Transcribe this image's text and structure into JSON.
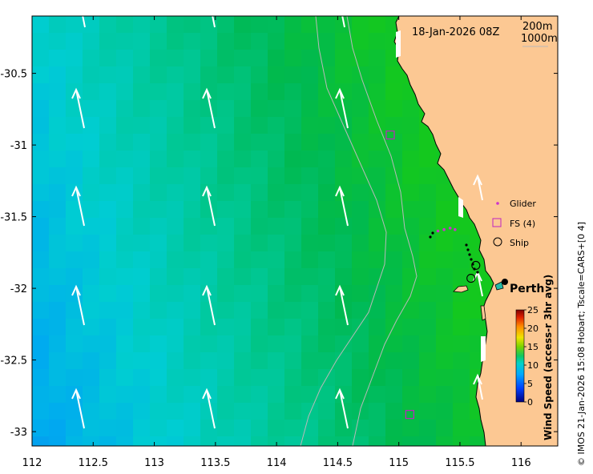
{
  "map": {
    "timestamp": "18-Jan-2026 08Z",
    "contours": [
      "200m",
      "1000m"
    ],
    "city_label": "Perth",
    "credit": "© IMOS 21-Jan-2026 15:08 Hobart; Tscale=CARS+[0 4]",
    "x_ticks": [
      {
        "value": 112,
        "label": "112"
      },
      {
        "value": 112.5,
        "label": "112.5"
      },
      {
        "value": 113,
        "label": "113"
      },
      {
        "value": 113.5,
        "label": "113.5"
      },
      {
        "value": 114,
        "label": "114"
      },
      {
        "value": 114.5,
        "label": "114.5"
      },
      {
        "value": 115,
        "label": "115"
      },
      {
        "value": 115.5,
        "label": "115.5"
      },
      {
        "value": 116,
        "label": "116"
      }
    ],
    "y_ticks": [
      {
        "value": -30.5,
        "label": "-30.5"
      },
      {
        "value": -31,
        "label": "-31"
      },
      {
        "value": -31.5,
        "label": "-31.5"
      },
      {
        "value": -32,
        "label": "-32"
      },
      {
        "value": -32.5,
        "label": "-32.5"
      },
      {
        "value": -33,
        "label": "-33"
      }
    ],
    "x_range": [
      112,
      116.3
    ],
    "y_range": [
      -33.1,
      -30.1
    ],
    "legend": {
      "glider": "Glider",
      "fs": "FS (4)",
      "ship": "Ship"
    },
    "colorbar": {
      "title": "Wind Speed (access-r 3hr avg)",
      "ticks": [
        {
          "value": 0,
          "label": "0"
        },
        {
          "value": 5,
          "label": "5"
        },
        {
          "value": 10,
          "label": "10"
        },
        {
          "value": 15,
          "label": "15"
        },
        {
          "value": 20,
          "label": "20"
        },
        {
          "value": 25,
          "label": "25"
        }
      ],
      "range": [
        0,
        25
      ]
    },
    "colors": {
      "land": "#fcc893",
      "glider": "#cc33cc",
      "fs": "#c023c0",
      "arrow": "#ffffff",
      "contour": "#b8b8b8"
    },
    "fs_stations": [
      {
        "lon": 114.93,
        "lat": -30.93
      },
      {
        "lon": 115.09,
        "lat": -32.88
      }
    ],
    "ship_positions": [
      {
        "lon": 115.63,
        "lat": -31.84
      },
      {
        "lon": 115.59,
        "lat": -31.93
      }
    ],
    "glider_track": [
      {
        "lon": 115.32,
        "lat": -31.6
      },
      {
        "lon": 115.37,
        "lat": -31.59
      },
      {
        "lon": 115.42,
        "lat": -31.58
      },
      {
        "lon": 115.46,
        "lat": -31.59
      }
    ]
  }
}
